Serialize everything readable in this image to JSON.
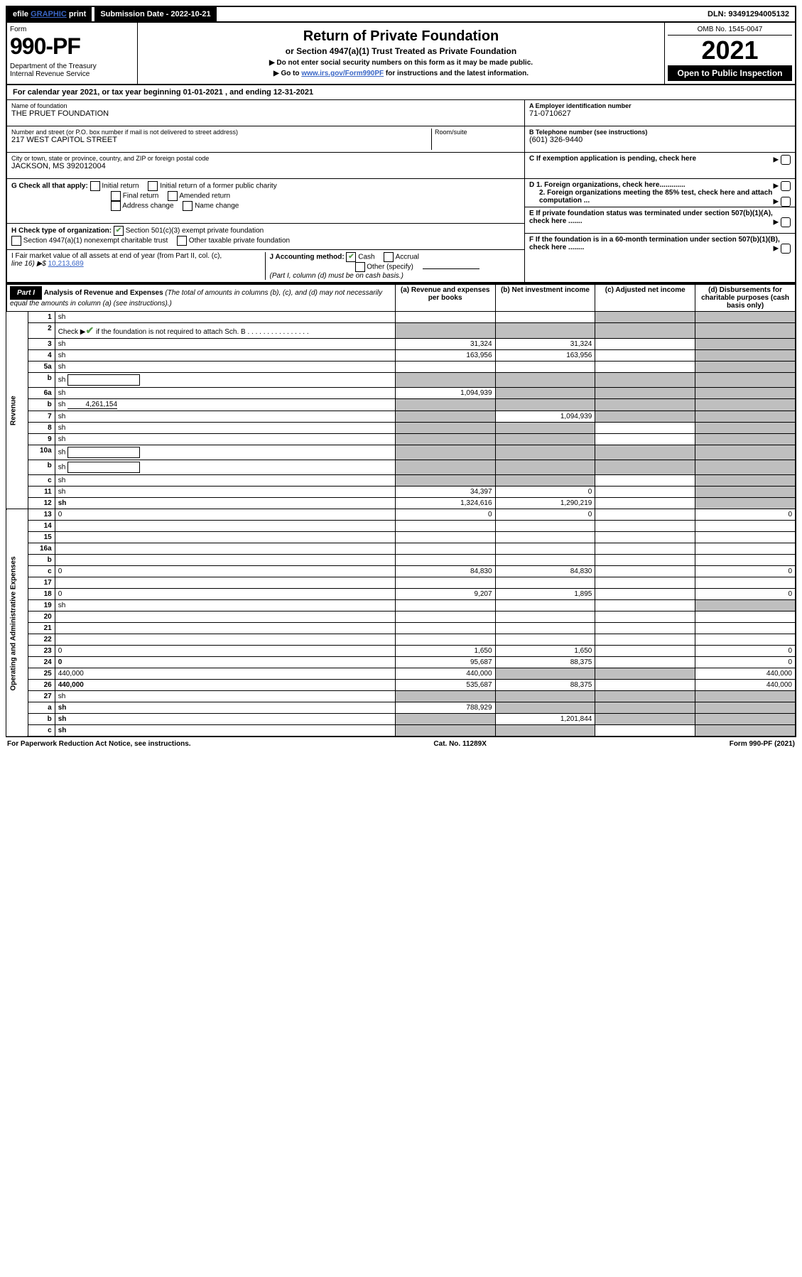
{
  "top": {
    "efile_prefix": "efile",
    "efile_link": "GRAPHIC",
    "efile_suffix": "print",
    "submission": "Submission Date - 2022-10-21",
    "dln": "DLN: 93491294005132"
  },
  "header": {
    "form_label": "Form",
    "form_no": "990-PF",
    "dept": "Department of the Treasury\nInternal Revenue Service",
    "title": "Return of Private Foundation",
    "subtitle": "or Section 4947(a)(1) Trust Treated as Private Foundation",
    "instr1": "▶ Do not enter social security numbers on this form as it may be made public.",
    "instr2_pre": "▶ Go to ",
    "instr2_link": "www.irs.gov/Form990PF",
    "instr2_post": " for instructions and the latest information.",
    "omb": "OMB No. 1545-0047",
    "year": "2021",
    "open": "Open to Public Inspection"
  },
  "cal_year": "For calendar year 2021, or tax year beginning 01-01-2021               , and ending 12-31-2021",
  "name_block": {
    "lbl": "Name of foundation",
    "val": "THE PRUET FOUNDATION"
  },
  "addr_block": {
    "lbl": "Number and street (or P.O. box number if mail is not delivered to street address)",
    "val": "217 WEST CAPITOL STREET",
    "room_lbl": "Room/suite"
  },
  "city_block": {
    "lbl": "City or town, state or province, country, and ZIP or foreign postal code",
    "val": "JACKSON, MS  392012004"
  },
  "ein_block": {
    "lbl": "A Employer identification number",
    "val": "71-0710627"
  },
  "phone_block": {
    "lbl": "B Telephone number (see instructions)",
    "val": "(601) 326-9440"
  },
  "c_block": "C If exemption application is pending, check here",
  "d1": "D 1. Foreign organizations, check here.............",
  "d2": "2. Foreign organizations meeting the 85% test, check here and attach computation ...",
  "e_block": "E  If private foundation status was terminated under section 507(b)(1)(A), check here .......",
  "f_block": "F  If the foundation is in a 60-month termination under section 507(b)(1)(B), check here ........",
  "g_block": {
    "lbl": "G Check all that apply:",
    "opts": [
      "Initial return",
      "Initial return of a former public charity",
      "Final return",
      "Amended return",
      "Address change",
      "Name change"
    ]
  },
  "h_block": {
    "lbl": "H Check type of organization:",
    "opt1": "Section 501(c)(3) exempt private foundation",
    "opt2": "Section 4947(a)(1) nonexempt charitable trust",
    "opt3": "Other taxable private foundation"
  },
  "i_block": {
    "lbl": "I Fair market value of all assets at end of year (from Part II, col. (c),",
    "line": "line 16) ▶$  ",
    "val": "10,213,689"
  },
  "j_block": {
    "lbl": "J Accounting method:",
    "cash": "Cash",
    "accrual": "Accrual",
    "other": "Other (specify)",
    "note": "(Part I, column (d) must be on cash basis.)"
  },
  "part1": {
    "hdr": "Part I",
    "title": "Analysis of Revenue and Expenses",
    "title_note": " (The total of amounts in columns (b), (c), and (d) may not necessarily equal the amounts in column (a) (see instructions).)",
    "col_a": "(a)    Revenue and expenses per books",
    "col_b": "(b)   Net investment income",
    "col_c": "(c)  Adjusted net income",
    "col_d": "(d)  Disbursements for charitable purposes (cash basis only)"
  },
  "side_labels": {
    "revenue": "Revenue",
    "expenses": "Operating and Administrative Expenses"
  },
  "rows": [
    {
      "n": "1",
      "d": "sh",
      "a": "",
      "b": "",
      "c": "sh"
    },
    {
      "n": "2",
      "d_pre": "Check ▶",
      "d_post": " if the foundation is not required to attach Sch. B    .  .  .  .  .  .  .  .  .  .  .  .  .  .  .  .",
      "a": "sh",
      "b": "sh",
      "c": "sh",
      "d": "sh",
      "checked": true
    },
    {
      "n": "3",
      "d": "sh",
      "a": "31,324",
      "b": "31,324",
      "c": ""
    },
    {
      "n": "4",
      "d": "sh",
      "a": "163,956",
      "b": "163,956",
      "c": ""
    },
    {
      "n": "5a",
      "d": "sh",
      "a": "",
      "b": "",
      "c": ""
    },
    {
      "n": "b",
      "d": "sh",
      "a": "sh",
      "b": "sh",
      "c": "sh",
      "inline_box": true
    },
    {
      "n": "6a",
      "d": "sh",
      "a": "1,094,939",
      "b": "sh",
      "c": "sh"
    },
    {
      "n": "b",
      "d": "sh",
      "a": "sh",
      "b": "sh",
      "c": "sh",
      "inline_val": "4,261,154"
    },
    {
      "n": "7",
      "d": "sh",
      "a": "sh",
      "b": "1,094,939",
      "c": "sh"
    },
    {
      "n": "8",
      "d": "sh",
      "a": "sh",
      "b": "sh",
      "c": ""
    },
    {
      "n": "9",
      "d": "sh",
      "a": "sh",
      "b": "sh",
      "c": ""
    },
    {
      "n": "10a",
      "d": "sh",
      "a": "sh",
      "b": "sh",
      "c": "sh",
      "inline_box": true
    },
    {
      "n": "b",
      "d": "sh",
      "a": "sh",
      "b": "sh",
      "c": "sh",
      "inline_box": true
    },
    {
      "n": "c",
      "d": "sh",
      "a": "sh",
      "b": "sh",
      "c": ""
    },
    {
      "n": "11",
      "d": "sh",
      "a": "34,397",
      "b": "0",
      "c": ""
    },
    {
      "n": "12",
      "d": "sh",
      "a": "1,324,616",
      "b": "1,290,219",
      "c": "",
      "bold": true
    },
    {
      "n": "13",
      "d": "0",
      "a": "0",
      "b": "0",
      "c": "",
      "sec": "exp"
    },
    {
      "n": "14",
      "d": "",
      "a": "",
      "b": "",
      "c": "",
      "sec": "exp"
    },
    {
      "n": "15",
      "d": "",
      "a": "",
      "b": "",
      "c": "",
      "sec": "exp"
    },
    {
      "n": "16a",
      "d": "",
      "a": "",
      "b": "",
      "c": "",
      "sec": "exp"
    },
    {
      "n": "b",
      "d": "",
      "a": "",
      "b": "",
      "c": "",
      "sec": "exp"
    },
    {
      "n": "c",
      "d": "0",
      "a": "84,830",
      "b": "84,830",
      "c": "",
      "sec": "exp"
    },
    {
      "n": "17",
      "d": "",
      "a": "",
      "b": "",
      "c": "",
      "sec": "exp"
    },
    {
      "n": "18",
      "d": "0",
      "a": "9,207",
      "b": "1,895",
      "c": "",
      "sec": "exp"
    },
    {
      "n": "19",
      "d": "sh",
      "a": "",
      "b": "",
      "c": "",
      "sec": "exp"
    },
    {
      "n": "20",
      "d": "",
      "a": "",
      "b": "",
      "c": "",
      "sec": "exp"
    },
    {
      "n": "21",
      "d": "",
      "a": "",
      "b": "",
      "c": "",
      "sec": "exp"
    },
    {
      "n": "22",
      "d": "",
      "a": "",
      "b": "",
      "c": "",
      "sec": "exp"
    },
    {
      "n": "23",
      "d": "0",
      "a": "1,650",
      "b": "1,650",
      "c": "",
      "sec": "exp"
    },
    {
      "n": "24",
      "d": "0",
      "a": "95,687",
      "b": "88,375",
      "c": "",
      "sec": "exp",
      "bold": true
    },
    {
      "n": "25",
      "d": "440,000",
      "a": "440,000",
      "b": "sh",
      "c": "sh",
      "sec": "exp"
    },
    {
      "n": "26",
      "d": "440,000",
      "a": "535,687",
      "b": "88,375",
      "c": "",
      "sec": "exp",
      "bold": true
    },
    {
      "n": "27",
      "d": "sh",
      "a": "sh",
      "b": "sh",
      "c": "sh",
      "sec": "exp"
    },
    {
      "n": "a",
      "d": "sh",
      "a": "788,929",
      "b": "sh",
      "c": "sh",
      "sec": "exp",
      "bold": true
    },
    {
      "n": "b",
      "d": "sh",
      "a": "sh",
      "b": "1,201,844",
      "c": "sh",
      "sec": "exp",
      "bold": true
    },
    {
      "n": "c",
      "d": "sh",
      "a": "sh",
      "b": "sh",
      "c": "",
      "sec": "exp",
      "bold": true
    }
  ],
  "footer": {
    "left": "For Paperwork Reduction Act Notice, see instructions.",
    "mid": "Cat. No. 11289X",
    "right": "Form 990-PF (2021)"
  }
}
